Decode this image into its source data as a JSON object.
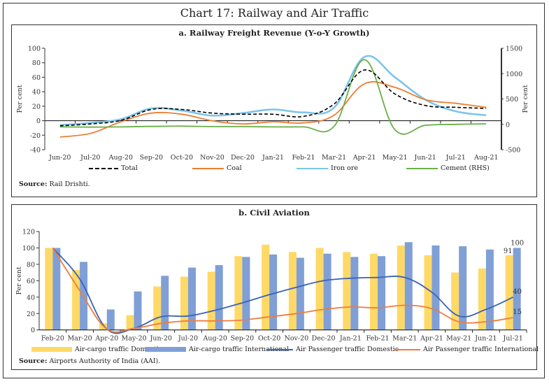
{
  "page": {
    "title": "Chart 17: Railway and Air Traffic"
  },
  "panel_a": {
    "title": "a. Railway Freight Revenue (Y-o-Y Growth)",
    "source_label": "Source:",
    "source_text": "Rail Drishti.",
    "legend": [
      {
        "label": "Total",
        "color": "#000000",
        "style": "dashed"
      },
      {
        "label": "Coal",
        "color": "#ED7D31",
        "style": "solid"
      },
      {
        "label": "Iron ore",
        "color": "#7EC4EA",
        "style": "solid"
      },
      {
        "label": "Cement (RHS)",
        "color": "#6AAF48",
        "style": "solid"
      }
    ]
  },
  "panel_b": {
    "title": "b. Civil Aviation",
    "source_label": "Source:",
    "source_text": "Airports Authority of India (AAI).",
    "legend": [
      {
        "label": "Air-cargo traffic Domestic",
        "color": "#FFD966",
        "style": "bar"
      },
      {
        "label": "Air-cargo traffic International",
        "color": "#7F9FD6",
        "style": "bar"
      },
      {
        "label": "Air Passenger traffic Domestic",
        "color": "#3A62B5",
        "style": "line"
      },
      {
        "label": "Air Passenger traffic International",
        "color": "#F07C3C",
        "style": "line"
      }
    ]
  },
  "chart_data": [
    {
      "type": "line",
      "title": "a. Railway Freight Revenue (Y-o-Y Growth)",
      "xlabel": "",
      "ylabel": "Per cent",
      "y2label": "Per cent",
      "categories": [
        "Jun-20",
        "Jul-20",
        "Aug-20",
        "Sep-20",
        "Oct-20",
        "Nov-20",
        "Dec-20",
        "Jan-21",
        "Feb-21",
        "Mar-21",
        "Apr-21",
        "May-21",
        "Jun-21",
        "Jul-21",
        "Aug-21"
      ],
      "ylim": [
        -40,
        100
      ],
      "yticks": [
        -40,
        -20,
        0,
        20,
        40,
        60,
        80,
        100
      ],
      "y2lim": [
        -500,
        1500
      ],
      "y2ticks": [
        -500,
        0,
        500,
        1000,
        1500
      ],
      "grid": false,
      "legend_position": "bottom",
      "series": [
        {
          "name": "Total",
          "axis": "left",
          "color": "#000000",
          "style": "dashed",
          "values": [
            -7,
            -4.5,
            0.5,
            15.5,
            15.5,
            10.5,
            9,
            9,
            6,
            23,
            70,
            37,
            21,
            18.5,
            17
          ]
        },
        {
          "name": "Coal",
          "axis": "left",
          "color": "#ED7D31",
          "style": "solid",
          "values": [
            -22.5,
            -17.5,
            -1.5,
            10.5,
            9,
            0,
            -4.5,
            -1.5,
            -3,
            7.5,
            51,
            46,
            29,
            24,
            18.5
          ]
        },
        {
          "name": "Iron ore",
          "axis": "left",
          "color": "#7EC4EA",
          "style": "solid",
          "values": [
            -6,
            -3,
            2,
            17,
            14,
            7,
            10.5,
            15.5,
            11.5,
            18,
            88,
            60,
            29,
            13,
            7.5
          ]
        },
        {
          "name": "Cement (RHS)",
          "axis": "right",
          "color": "#6AAF48",
          "style": "solid",
          "values": [
            -50,
            -55,
            -50,
            -40,
            -35,
            -45,
            -45,
            -50,
            -50,
            -40,
            1275,
            -105,
            -20,
            0,
            10
          ]
        }
      ]
    },
    {
      "type": "bar",
      "title": "b. Civil Aviation",
      "xlabel": "",
      "ylabel": "Per cent",
      "categories": [
        "Feb-20",
        "Mar-20",
        "Apr-20",
        "May-20",
        "Jun-20",
        "Jul-20",
        "Aug-20",
        "Sep-20",
        "Oct-20",
        "Nov-20",
        "Dec-20",
        "Jan-21",
        "Feb-21",
        "Mar-21",
        "Apr-21",
        "May-21",
        "Jun-21",
        "Jul-21"
      ],
      "ylim": [
        0,
        120
      ],
      "yticks": [
        0,
        20,
        40,
        60,
        80,
        100,
        120
      ],
      "grid": false,
      "legend_position": "bottom",
      "series": [
        {
          "name": "Air-cargo traffic Domestic",
          "kind": "bar",
          "color": "#FFD966",
          "values": [
            100,
            73,
            8,
            18,
            53,
            65,
            71,
            90,
            104,
            95,
            100,
            95,
            93,
            103,
            91,
            70,
            75,
            91
          ]
        },
        {
          "name": "Air-cargo traffic International",
          "kind": "bar",
          "color": "#7F9FD6",
          "values": [
            100,
            83,
            25,
            47,
            66,
            76,
            79,
            89,
            92,
            88,
            93,
            89,
            90,
            107,
            103,
            102,
            98,
            100
          ]
        },
        {
          "name": "Air Passenger traffic Domestic",
          "kind": "line",
          "color": "#3A62B5",
          "values": [
            100,
            62,
            1,
            2,
            16,
            17,
            24,
            33,
            43,
            52,
            60,
            63,
            64,
            64,
            46,
            17,
            25,
            40
          ]
        },
        {
          "name": "Air Passenger traffic International",
          "kind": "line",
          "color": "#F07C3C",
          "values": [
            100,
            48,
            1,
            2,
            8,
            11,
            11,
            12,
            16,
            20,
            25,
            28,
            27,
            30,
            26,
            10,
            10,
            15
          ]
        }
      ],
      "annotations": [
        {
          "series": "Air-cargo traffic International",
          "category": "Jul-21",
          "text": "100"
        },
        {
          "series": "Air-cargo traffic Domestic",
          "category": "Jul-21",
          "text": "91"
        },
        {
          "series": "Air Passenger traffic Domestic",
          "category": "Jul-21",
          "text": "40"
        },
        {
          "series": "Air Passenger traffic International",
          "category": "Jul-21",
          "text": "15"
        }
      ]
    }
  ]
}
